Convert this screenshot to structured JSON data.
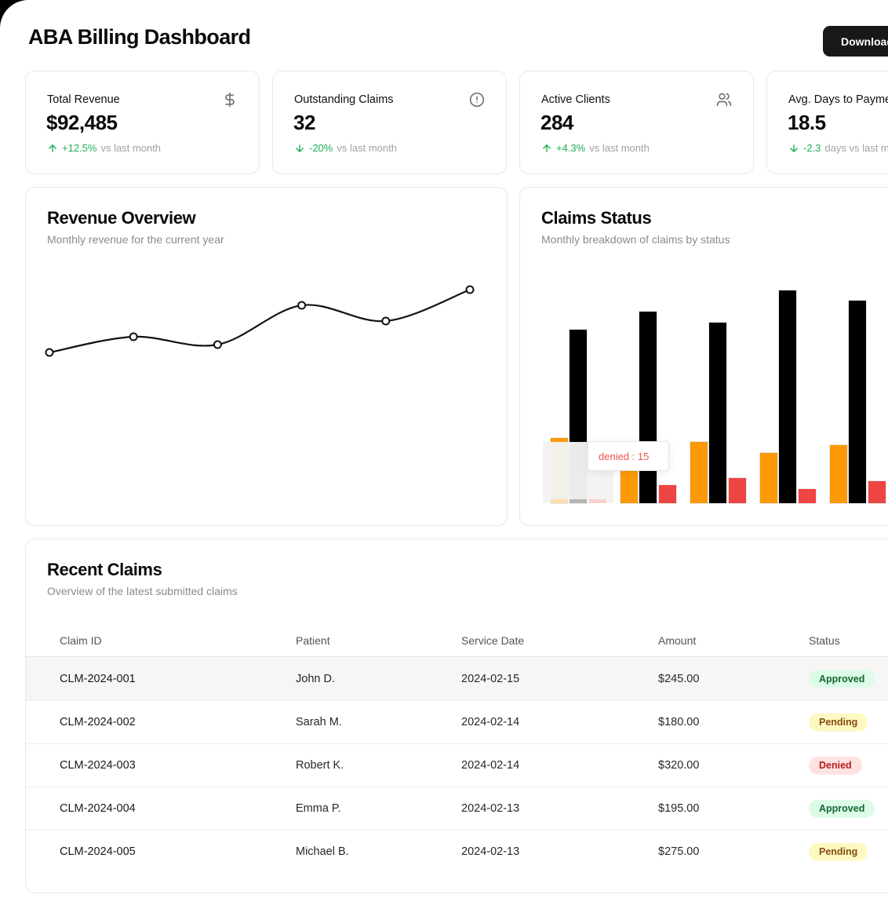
{
  "header": {
    "title": "ABA Billing Dashboard",
    "download_label": "Download"
  },
  "stats": [
    {
      "label": "Total Revenue",
      "value": "$92,485",
      "icon": "dollar-sign",
      "trend_direction": "up",
      "trend_value": "+12.5%",
      "trend_suffix": "vs last month"
    },
    {
      "label": "Outstanding Claims",
      "value": "32",
      "icon": "alert-circle",
      "trend_direction": "down",
      "trend_value": "-20%",
      "trend_suffix": "vs last month"
    },
    {
      "label": "Active Clients",
      "value": "284",
      "icon": "users",
      "trend_direction": "up",
      "trend_value": "+4.3%",
      "trend_suffix": "vs last month"
    },
    {
      "label": "Avg. Days to Payment",
      "value": "18.5",
      "icon": null,
      "trend_direction": "down",
      "trend_value": "-2.3",
      "trend_suffix": "days vs last month"
    }
  ],
  "chart_data": [
    {
      "id": "revenue_overview",
      "type": "line",
      "title": "Revenue Overview",
      "subtitle": "Monthly revenue for the current year",
      "values": [
        12000,
        13000,
        12500,
        15000,
        14000,
        16000
      ],
      "x_tick_labels_visible": false,
      "y_tick_labels_visible": false,
      "grid": false,
      "markers": true,
      "line_color": "#111111"
    },
    {
      "id": "claims_status",
      "type": "bar",
      "title": "Claims Status",
      "subtitle": "Monthly breakdown of claims by status",
      "groups": 5,
      "series": [
        {
          "name": "pending",
          "color": "#fb9906",
          "values": [
            18,
            9,
            17,
            14,
            16
          ]
        },
        {
          "name": "approved",
          "color": "#000000",
          "values": [
            48,
            53,
            50,
            59,
            56
          ]
        },
        {
          "name": "denied",
          "color": "#ef4444",
          "values": [
            15,
            5,
            7,
            4,
            6
          ]
        }
      ],
      "axes_visible": false,
      "grid": false,
      "hover_group_index": 0,
      "tooltip": {
        "text": "denied : 15",
        "group_index": 0
      }
    }
  ],
  "table": {
    "title": "Recent Claims",
    "subtitle": "Overview of the latest submitted claims",
    "columns": [
      "Claim ID",
      "Patient",
      "Service Date",
      "Amount",
      "Status"
    ],
    "rows": [
      {
        "claim_id": "CLM-2024-001",
        "patient": "John D.",
        "service_date": "2024-02-15",
        "amount": "$245.00",
        "status": "Approved",
        "highlighted": true
      },
      {
        "claim_id": "CLM-2024-002",
        "patient": "Sarah M.",
        "service_date": "2024-02-14",
        "amount": "$180.00",
        "status": "Pending",
        "highlighted": false
      },
      {
        "claim_id": "CLM-2024-003",
        "patient": "Robert K.",
        "service_date": "2024-02-14",
        "amount": "$320.00",
        "status": "Denied",
        "highlighted": false
      },
      {
        "claim_id": "CLM-2024-004",
        "patient": "Emma P.",
        "service_date": "2024-02-13",
        "amount": "$195.00",
        "status": "Approved",
        "highlighted": false
      },
      {
        "claim_id": "CLM-2024-005",
        "patient": "Michael B.",
        "service_date": "2024-02-13",
        "amount": "$275.00",
        "status": "Pending",
        "highlighted": false
      }
    ]
  },
  "colors": {
    "positive_green": "#1fae53",
    "bar_pending_orange": "#fb9906",
    "bar_approved_black": "#000000",
    "bar_denied_red": "#ef4444",
    "tooltip_text_red": "#ef5350",
    "status_approved_bg": "#dcfce7",
    "status_approved_text": "#166534",
    "status_pending_bg": "#fef9c3",
    "status_pending_text": "#854d0e",
    "status_denied_bg": "#fee2e2",
    "status_denied_text": "#b91c1c",
    "button_bg": "#18181b"
  }
}
